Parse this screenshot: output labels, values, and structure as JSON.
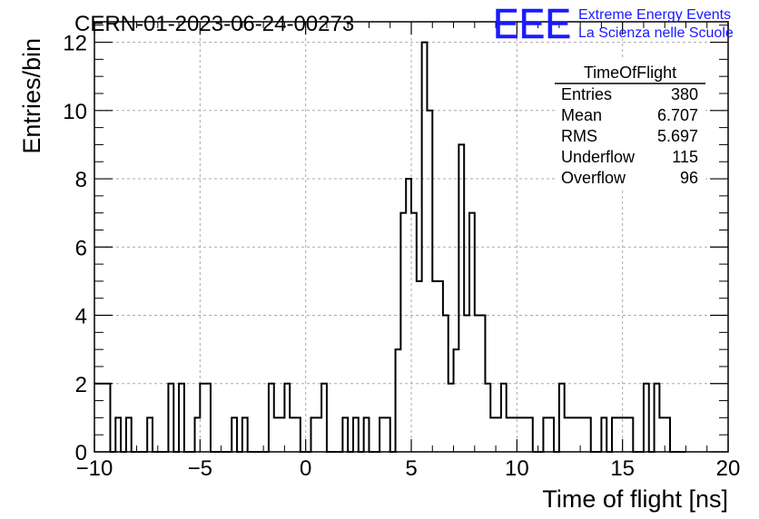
{
  "title": "CERN-01-2023-06-24-00273",
  "logo": {
    "mark": "EEE",
    "line1": "Extreme Energy Events",
    "line2": "La Scienza nelle Scuole",
    "color": "#1a1aff"
  },
  "stats": {
    "name": "TimeOfFlight",
    "rows": [
      {
        "label": "Entries",
        "value": "380"
      },
      {
        "label": "Mean",
        "value": "6.707"
      },
      {
        "label": "RMS",
        "value": "5.697"
      },
      {
        "label": "Underflow",
        "value": "115"
      },
      {
        "label": "Overflow",
        "value": "96"
      }
    ]
  },
  "chart_data": {
    "type": "bar",
    "histogram": true,
    "xlabel": "Time of flight [ns]",
    "ylabel": "Entries/bin",
    "xlim": [
      -10,
      20
    ],
    "ylim": [
      0,
      12.6
    ],
    "xticks": [
      -10,
      -5,
      0,
      5,
      10,
      15,
      20
    ],
    "yticks": [
      0,
      2,
      4,
      6,
      8,
      10,
      12
    ],
    "grid": true,
    "bin_start": -10,
    "bin_width": 0.25,
    "values": [
      2,
      2,
      2,
      0,
      1,
      0,
      1,
      0,
      0,
      0,
      1,
      0,
      0,
      0,
      2,
      0,
      2,
      0,
      0,
      1,
      2,
      2,
      0,
      0,
      0,
      0,
      1,
      0,
      1,
      0,
      0,
      0,
      0,
      2,
      1,
      1,
      2,
      1,
      1,
      0,
      0,
      1,
      1,
      2,
      0,
      0,
      0,
      1,
      0,
      1,
      0,
      1,
      0,
      0,
      1,
      1,
      0,
      3,
      7,
      8,
      7,
      5,
      12,
      10,
      5,
      5,
      4,
      2,
      3,
      9,
      4,
      7,
      4,
      4,
      2,
      1,
      1,
      2,
      1,
      1,
      1,
      1,
      1,
      0,
      0,
      1,
      1,
      0,
      2,
      1,
      1,
      1,
      1,
      1,
      0,
      0,
      1,
      0,
      1,
      1,
      1,
      1,
      0,
      0,
      2,
      0,
      2,
      1,
      1,
      0,
      0,
      0
    ]
  }
}
